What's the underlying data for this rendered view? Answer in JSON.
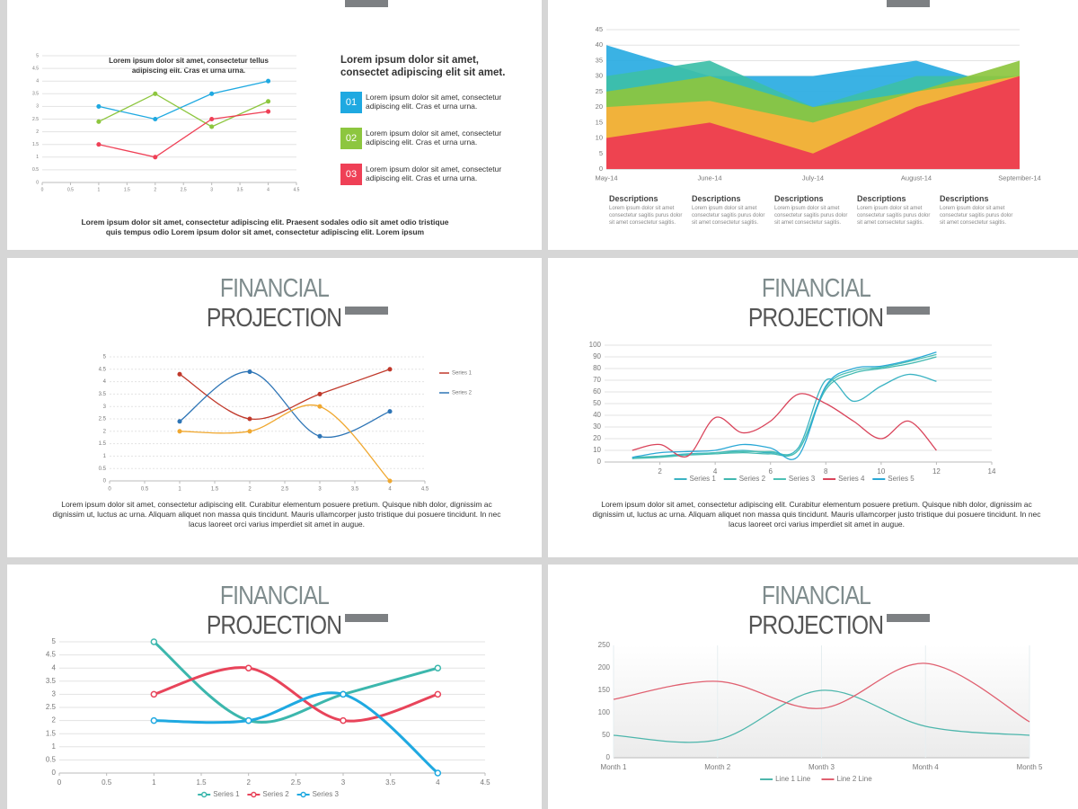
{
  "panel1": {
    "heading": "Lorem ipsum dolor sit amet, consectet adipiscing elit sit amet.",
    "items": [
      {
        "number": "01",
        "text": "Lorem ipsum dolor sit amet, consectetur adipiscing elit. Cras et urna urna."
      },
      {
        "number": "02",
        "text": "Lorem ipsum dolor sit amet, consectetur adipiscing elit. Cras et urna urna."
      },
      {
        "number": "03",
        "text": "Lorem ipsum dolor sit amet, consectetur adipiscing elit. Cras et urna urna."
      }
    ],
    "caption": "Lorem ipsum dolor sit amet, consectetur adipiscing elit. Praesent sodales odio sit amet odio tristique quis tempus odio Lorem ipsum dolor sit amet, consectetur adipiscing elit. Lorem ipsum"
  },
  "panel2": {
    "descriptions": [
      {
        "title": "Descriptions",
        "text": "Lorem ipsum dolor sit amet consectetur sagitis purus dolor sit amet consectetur sagitis."
      },
      {
        "title": "Descriptions",
        "text": "Lorem ipsum dolor sit amet consectetur sagitis purus dolor sit amet consectetur sagitis."
      },
      {
        "title": "Descriptions",
        "text": "Lorem ipsum dolor sit amet consectetur sagitis purus dolor sit amet consectetur sagitis."
      },
      {
        "title": "Descriptions",
        "text": "Lorem ipsum dolor sit amet consectetur sagitis purus dolor sit amet consectetur sagitis."
      },
      {
        "title": "Descriptions",
        "text": "Lorem ipsum dolor sit amet consectetur sagitis purus dolor sit amet consectetur sagitis."
      }
    ]
  },
  "slides": [
    {
      "title_light": "FINANCIAL",
      "title_dark": "PROJECTION",
      "paragraph": "Lorem ipsum dolor sit amet, consectetur adipiscing elit. Curabitur elementum posuere pretium. Quisque nibh dolor, dignissim ac dignissim ut, luctus ac urna. Aliquam aliquet non massa quis tincidunt. Mauris ullamcorper justo tristique dui posuere tincidunt. In nec lacus laoreet orci varius imperdiet sit amet in augue."
    },
    {
      "title_light": "FINANCIAL",
      "title_dark": "PROJECTION",
      "paragraph": "Lorem ipsum dolor sit amet, consectetur adipiscing elit. Curabitur elementum posuere pretium. Quisque nibh dolor, dignissim ac dignissim ut, luctus ac urna. Aliquam aliquet non massa quis tincidunt. Mauris ullamcorper justo tristique dui posuere tincidunt. In nec lacus laoreet orci varius imperdiet sit amet in augue."
    },
    {
      "title_light": "FINANCIAL",
      "title_dark": "PROJECTION"
    },
    {
      "title_light": "FINANCIAL",
      "title_dark": "PROJECTION"
    }
  ],
  "chart_data": [
    {
      "type": "line",
      "title": "Lorem ipsum dolor sit amet, consectetur tellus adipiscing elit. Cras et urna urna.",
      "x": [
        1,
        2,
        3,
        4
      ],
      "xlim": [
        0,
        4.5
      ],
      "xticks": [
        0,
        0.5,
        1,
        1.5,
        2,
        2.5,
        3,
        3.5,
        4,
        4.5
      ],
      "ylim": [
        0,
        5
      ],
      "yticks": [
        0,
        0.5,
        1,
        1.5,
        2,
        2.5,
        3,
        3.5,
        4,
        4.5,
        5
      ],
      "grid": true,
      "markers": true,
      "smooth": false,
      "series": [
        {
          "color": "#1fa9e1",
          "values": [
            3,
            2.5,
            3.5,
            4
          ]
        },
        {
          "color": "#8dc63f",
          "values": [
            2.4,
            3.5,
            2.2,
            3.2
          ]
        },
        {
          "color": "#ef4056",
          "values": [
            1.5,
            1,
            2.5,
            2.8
          ]
        }
      ]
    },
    {
      "type": "area",
      "categories": [
        "May-14",
        "June-14",
        "July-14",
        "August-14",
        "September-14"
      ],
      "ylim": [
        0,
        45
      ],
      "yticks": [
        0,
        5,
        10,
        15,
        20,
        25,
        30,
        35,
        40,
        45
      ],
      "grid": true,
      "series": [
        {
          "color": "#29abe2",
          "values": [
            40,
            30,
            30,
            35,
            25
          ]
        },
        {
          "color": "#3dbfa8",
          "values": [
            30,
            35,
            20,
            30,
            30
          ]
        },
        {
          "color": "#8dc63f",
          "values": [
            25,
            30,
            20,
            25,
            35
          ]
        },
        {
          "color": "#fbb03b",
          "values": [
            20,
            22,
            15,
            25,
            30
          ]
        },
        {
          "color": "#ee3a52",
          "values": [
            10,
            15,
            5,
            20,
            30
          ]
        }
      ]
    },
    {
      "type": "line",
      "x": [
        1,
        2,
        3,
        4
      ],
      "xlim": [
        0,
        4.5
      ],
      "xticks": [
        0,
        0.5,
        1,
        1.5,
        2,
        2.5,
        3,
        3.5,
        4,
        4.5
      ],
      "ylim": [
        0,
        5
      ],
      "yticks": [
        0,
        0.5,
        1,
        1.5,
        2,
        2.5,
        3,
        3.5,
        4,
        4.5,
        5
      ],
      "grid": true,
      "markers": true,
      "smooth": true,
      "legend": "right",
      "series": [
        {
          "name": "Series 1",
          "color": "#c0392b",
          "values": [
            4.3,
            2.5,
            3.5,
            4.5
          ]
        },
        {
          "name": "Series 2",
          "color": "#2e75b6",
          "values": [
            2.4,
            4.4,
            1.8,
            2.8
          ]
        },
        {
          "color": "#f0a830",
          "values": [
            2,
            2,
            3,
            0
          ]
        }
      ]
    },
    {
      "type": "line",
      "x": [
        1,
        2,
        3,
        4,
        5,
        6,
        7,
        8,
        9,
        10,
        11,
        12
      ],
      "xlim": [
        0,
        14
      ],
      "xticks": [
        2,
        4,
        6,
        8,
        10,
        12,
        14
      ],
      "ylim": [
        0,
        100
      ],
      "yticks": [
        0,
        10,
        20,
        30,
        40,
        50,
        60,
        70,
        80,
        90,
        100
      ],
      "grid": true,
      "markers": false,
      "smooth": true,
      "legend": "bottom",
      "series": [
        {
          "name": "Series 1",
          "color": "#3bb3c3",
          "values": [
            3,
            5,
            7,
            8,
            10,
            8,
            12,
            70,
            52,
            65,
            75,
            69
          ]
        },
        {
          "name": "Series 2",
          "color": "#40b8b0",
          "values": [
            4,
            5,
            6,
            7,
            8,
            7,
            10,
            62,
            76,
            80,
            84,
            90
          ]
        },
        {
          "name": "Series 3",
          "color": "#4cc0b5",
          "values": [
            3,
            4,
            6,
            8,
            9,
            9,
            10,
            64,
            78,
            81,
            86,
            92
          ]
        },
        {
          "name": "Series 4",
          "color": "#d9435a",
          "values": [
            10,
            15,
            5,
            38,
            25,
            35,
            58,
            50,
            35,
            20,
            35,
            10
          ]
        },
        {
          "name": "Series 5",
          "color": "#29a8d6",
          "values": [
            4,
            8,
            9,
            10,
            15,
            12,
            5,
            65,
            80,
            82,
            87,
            94
          ]
        }
      ]
    },
    {
      "type": "line",
      "x": [
        1,
        2,
        3,
        4
      ],
      "xlim": [
        0,
        4.5
      ],
      "xticks": [
        0,
        0.5,
        1,
        1.5,
        2,
        2.5,
        3,
        3.5,
        4,
        4.5
      ],
      "ylim": [
        0,
        5
      ],
      "yticks": [
        0,
        0.5,
        1,
        1.5,
        2,
        2.5,
        3,
        3.5,
        4,
        4.5,
        5
      ],
      "grid": true,
      "markers": true,
      "smooth": true,
      "legend": "bottom",
      "series": [
        {
          "name": "Series 1",
          "color": "#3cb7ad",
          "values": [
            5,
            2,
            3,
            4
          ]
        },
        {
          "name": "Series 2",
          "color": "#e8445a",
          "values": [
            3,
            4,
            2,
            3
          ]
        },
        {
          "name": "Series 3",
          "color": "#1fa9e1",
          "values": [
            2,
            2,
            3,
            0
          ]
        }
      ]
    },
    {
      "type": "line",
      "categories": [
        "Month 1",
        "Month 2",
        "Month 3",
        "Month 4",
        "Month 5"
      ],
      "ylim": [
        0,
        250
      ],
      "yticks": [
        0,
        50,
        100,
        150,
        200,
        250
      ],
      "grid": false,
      "markers": false,
      "smooth": true,
      "legend": "bottom",
      "series": [
        {
          "name": "Line 1 Line",
          "color": "#4db6ac",
          "values": [
            50,
            40,
            150,
            70,
            50
          ]
        },
        {
          "name": "Line 2 Line",
          "color": "#e06070",
          "values": [
            130,
            170,
            110,
            210,
            80
          ]
        }
      ]
    }
  ]
}
